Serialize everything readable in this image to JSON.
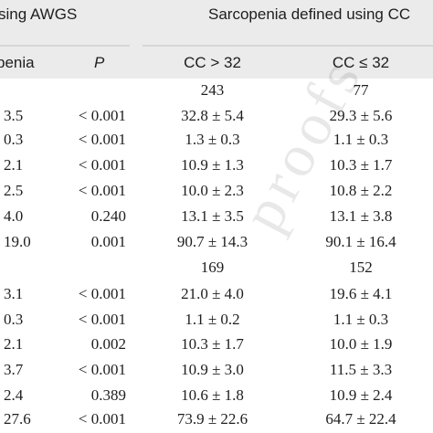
{
  "header": {
    "group_left": "sing AWGS",
    "group_right": "Sarcopenia defined using CC",
    "col_left": "penia",
    "col_p": "P",
    "col_cc_gt": "CC > 32",
    "col_cc_le": "CC ≤ 32"
  },
  "section1": {
    "n_gt": "243",
    "n_le": "77",
    "rows": [
      {
        "left": "3.5",
        "p": "< 0.001",
        "gt": "32.8 ± 5.4",
        "le": "29.3 ± 5.6"
      },
      {
        "left": "0.3",
        "p": "< 0.001",
        "gt": "1.3 ± 0.3",
        "le": "1.1 ± 0.3"
      },
      {
        "left": "2.1",
        "p": "< 0.001",
        "gt": "10.9 ± 1.3",
        "le": "10.3 ± 1.7"
      },
      {
        "left": "2.5",
        "p": "< 0.001",
        "gt": "10.0 ± 2.3",
        "le": "10.8 ± 2.2"
      },
      {
        "left": "4.0",
        "p": "0.240",
        "gt": "13.1 ± 3.5",
        "le": "13.1 ± 3.8"
      },
      {
        "left": "19.0",
        "p": "0.001",
        "gt": "90.7 ± 14.3",
        "le": "90.1 ± 16.4"
      }
    ]
  },
  "section2": {
    "n_gt": "169",
    "n_le": "152",
    "rows": [
      {
        "left": "3.1",
        "p": "< 0.001",
        "gt": "21.0 ± 4.0",
        "le": "19.6 ± 4.1"
      },
      {
        "left": "0.3",
        "p": "< 0.001",
        "gt": "1.1 ± 0.2",
        "le": "1.1 ± 0.3"
      },
      {
        "left": "2.1",
        "p": "0.002",
        "gt": "10.3 ± 1.7",
        "le": "10.0 ± 1.9"
      },
      {
        "left": "3.7",
        "p": "< 0.001",
        "gt": "10.9 ± 3.0",
        "le": "11.5 ± 3.3"
      },
      {
        "left": "2.4",
        "p": "0.389",
        "gt": "10.6 ± 1.8",
        "le": "10.9 ± 2.4"
      },
      {
        "left": "27.6",
        "p": "< 0.001",
        "gt": "73.9 ± 22.6",
        "le": "64.7 ± 22.4"
      }
    ]
  },
  "watermark": "proofs"
}
